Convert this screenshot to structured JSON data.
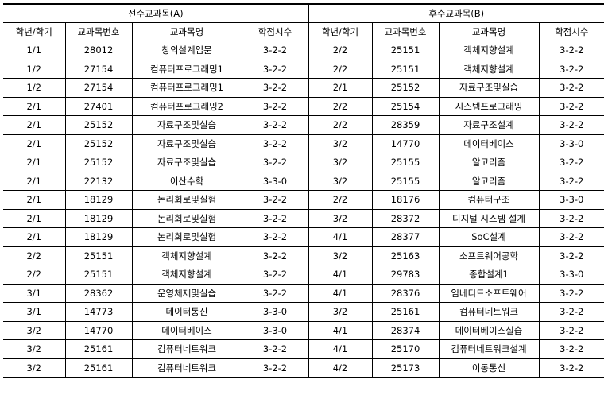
{
  "groups": {
    "a_label": "선수교과목(A)",
    "b_label": "후수교과목(B)"
  },
  "headers": [
    "학년/학기",
    "교과목번호",
    "교과목명",
    "학점시수",
    "학년/학기",
    "교과목번호",
    "교과목명",
    "학점시수"
  ],
  "rows": [
    [
      "1/1",
      "28012",
      "창의설계입문",
      "3-2-2",
      "2/2",
      "25151",
      "객체지향설계",
      "3-2-2"
    ],
    [
      "1/2",
      "27154",
      "컴퓨터프로그래밍1",
      "3-2-2",
      "2/2",
      "25151",
      "객체지향설계",
      "3-2-2"
    ],
    [
      "1/2",
      "27154",
      "컴퓨터프로그래밍1",
      "3-2-2",
      "2/1",
      "25152",
      "자료구조및실습",
      "3-2-2"
    ],
    [
      "2/1",
      "27401",
      "컴퓨터프로그래밍2",
      "3-2-2",
      "2/2",
      "25154",
      "시스템프로그래밍",
      "3-2-2"
    ],
    [
      "2/1",
      "25152",
      "자료구조및실습",
      "3-2-2",
      "2/2",
      "28359",
      "자료구조설계",
      "3-2-2"
    ],
    [
      "2/1",
      "25152",
      "자료구조및실습",
      "3-2-2",
      "3/2",
      "14770",
      "데이터베이스",
      "3-3-0"
    ],
    [
      "2/1",
      "25152",
      "자료구조및실습",
      "3-2-2",
      "3/2",
      "25155",
      "알고리즘",
      "3-2-2"
    ],
    [
      "2/1",
      "22132",
      "이산수학",
      "3-3-0",
      "3/2",
      "25155",
      "알고리즘",
      "3-2-2"
    ],
    [
      "2/1",
      "18129",
      "논리회로및실험",
      "3-2-2",
      "2/2",
      "18176",
      "컴퓨터구조",
      "3-3-0"
    ],
    [
      "2/1",
      "18129",
      "논리회로및실험",
      "3-2-2",
      "3/2",
      "28372",
      "디지털 시스템 설계",
      "3-2-2"
    ],
    [
      "2/1",
      "18129",
      "논리회로및실험",
      "3-2-2",
      "4/1",
      "28377",
      "SoC설계",
      "3-2-2"
    ],
    [
      "2/2",
      "25151",
      "객체지향설계",
      "3-2-2",
      "3/2",
      "25163",
      "소프트웨어공학",
      "3-2-2"
    ],
    [
      "2/2",
      "25151",
      "객체지향설계",
      "3-2-2",
      "4/1",
      "29783",
      "종합설계1",
      "3-3-0"
    ],
    [
      "3/1",
      "28362",
      "운영체제및실습",
      "3-2-2",
      "4/1",
      "28376",
      "임베디드소프트웨어",
      "3-2-2"
    ],
    [
      "3/1",
      "14773",
      "데이터통신",
      "3-3-0",
      "3/2",
      "25161",
      "컴퓨터네트워크",
      "3-2-2"
    ],
    [
      "3/2",
      "14770",
      "데이터베이스",
      "3-3-0",
      "4/1",
      "28374",
      "데이터베이스실습",
      "3-2-2"
    ],
    [
      "3/2",
      "25161",
      "컴퓨터네트워크",
      "3-2-2",
      "4/1",
      "25170",
      "컴퓨터네트워크설계",
      "3-2-2"
    ],
    [
      "3/2",
      "25161",
      "컴퓨터네트워크",
      "3-2-2",
      "4/2",
      "25173",
      "이동통신",
      "3-2-2"
    ]
  ]
}
